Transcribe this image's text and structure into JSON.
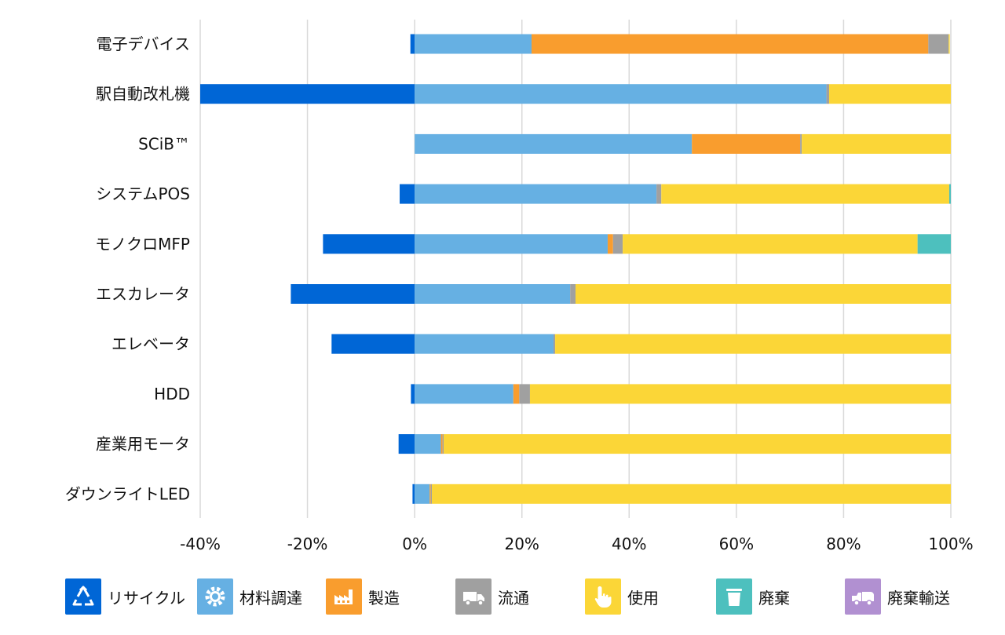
{
  "chart_data": {
    "type": "bar",
    "orientation": "horizontal",
    "stacked": true,
    "categories": [
      "電子デバイス",
      "駅自動改札機",
      "SCiB™",
      "システムPOS",
      "モノクロMFP",
      "エスカレータ",
      "エレベータ",
      "HDD",
      "産業用モータ",
      "ダウンライトLED"
    ],
    "series": [
      {
        "name": "リサイクル",
        "color": "#0066d6",
        "icon": "recycle-icon",
        "values": [
          -0.8,
          -40,
          0,
          -2.8,
          -17.1,
          -23.1,
          -15.5,
          -0.7,
          -3.0,
          -0.4
        ]
      },
      {
        "name": "材料調達",
        "color": "#66b0e3",
        "icon": "gear-icon",
        "values": [
          21.8,
          76.8,
          51.7,
          45.1,
          36.0,
          29.0,
          25.9,
          18.4,
          4.9,
          2.8
        ]
      },
      {
        "name": "製造",
        "color": "#f99d2e",
        "icon": "factory-icon",
        "values": [
          74.0,
          0,
          20.2,
          0,
          1.0,
          0,
          0,
          1.1,
          0.3,
          0.2
        ]
      },
      {
        "name": "流通",
        "color": "#a0a0a0",
        "icon": "truck-icon",
        "values": [
          3.8,
          0.5,
          0.3,
          0.9,
          1.8,
          1.0,
          0.3,
          2.0,
          0.2,
          0.2
        ]
      },
      {
        "name": "使用",
        "color": "#fbd637",
        "icon": "hand-pointer-icon",
        "values": [
          0.2,
          22.7,
          27.8,
          53.7,
          55.0,
          70.0,
          73.8,
          78.5,
          94.6,
          96.8
        ]
      },
      {
        "name": "廃棄",
        "color": "#4dc0be",
        "icon": "trash-icon",
        "values": [
          0,
          0,
          0,
          0.3,
          6.2,
          0,
          0,
          0,
          0,
          0
        ]
      },
      {
        "name": "廃棄輸送",
        "color": "#b190d1",
        "icon": "waste-truck-icon",
        "values": [
          0,
          0,
          0,
          0,
          0,
          0,
          0,
          0,
          0,
          0
        ]
      }
    ],
    "x_ticks": [
      "-40%",
      "-20%",
      "0%",
      "20%",
      "40%",
      "60%",
      "80%",
      "100%"
    ],
    "xlim": [
      -40,
      100
    ],
    "grid": true,
    "legend_position": "bottom"
  }
}
